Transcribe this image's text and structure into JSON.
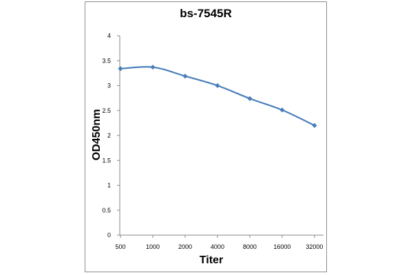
{
  "chart_data": {
    "type": "line",
    "title": "bs-7545R",
    "xlabel": "Titer",
    "ylabel": "OD450nm",
    "categories": [
      "500",
      "1000",
      "2000",
      "4000",
      "8000",
      "16000",
      "32000"
    ],
    "series": [
      {
        "values": [
          3.34,
          3.37,
          3.19,
          3.0,
          2.74,
          2.51,
          2.2
        ],
        "color": "#4a7ebb"
      }
    ],
    "ylim": [
      0,
      4
    ],
    "yticks": [
      "0",
      "0.5",
      "1",
      "1.5",
      "2",
      "2.5",
      "3",
      "3.5",
      "4"
    ],
    "grid": false,
    "legend": "none",
    "marker": "diamond",
    "smooth": true
  }
}
